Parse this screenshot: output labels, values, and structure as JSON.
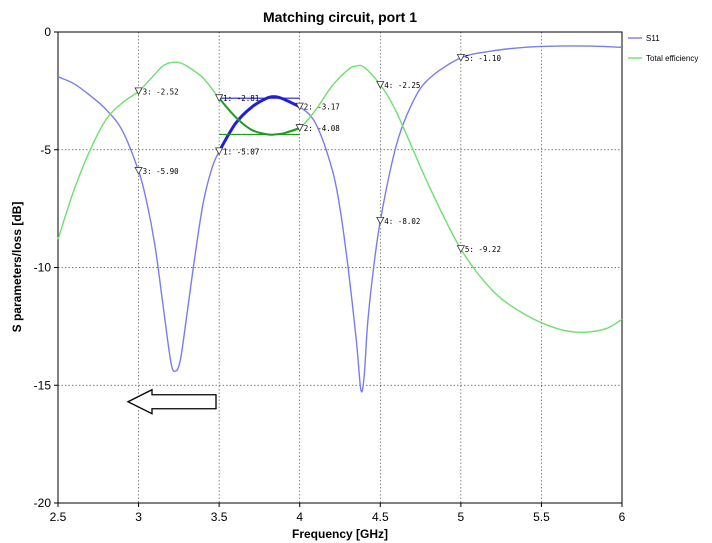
{
  "chart_data": {
    "type": "line",
    "title": "Matching circuit, port 1",
    "xlabel": "Frequency [GHz]",
    "ylabel": "S parameters/loss [dB]",
    "xlim": [
      2.5,
      6
    ],
    "ylim": [
      -20,
      0
    ],
    "xticks": [
      "2.5",
      "3",
      "3.5",
      "4",
      "4.5",
      "5",
      "5.5",
      "6"
    ],
    "yticks": [
      "0",
      "-5",
      "-10",
      "-15",
      "-20"
    ],
    "grid": true,
    "legend_position": "right",
    "series": [
      {
        "name": "S11",
        "color": "#7b7bf0",
        "x": [
          2.5,
          2.6,
          2.7,
          2.8,
          2.9,
          3.0,
          3.05,
          3.1,
          3.15,
          3.2,
          3.23,
          3.26,
          3.3,
          3.35,
          3.4,
          3.45,
          3.5,
          3.6,
          3.7,
          3.8,
          3.85,
          3.9,
          4.0,
          4.1,
          4.2,
          4.25,
          4.3,
          4.35,
          4.38,
          4.4,
          4.42,
          4.45,
          4.5,
          4.6,
          4.7,
          4.8,
          5.0,
          5.2,
          5.4,
          5.6,
          5.8,
          6.0
        ],
        "values": [
          -1.9,
          -2.2,
          -2.7,
          -3.3,
          -4.2,
          -5.9,
          -7.2,
          -9.0,
          -11.5,
          -14.0,
          -14.4,
          -13.9,
          -12.0,
          -9.5,
          -7.3,
          -5.9,
          -5.07,
          -3.9,
          -3.2,
          -2.8,
          -2.75,
          -2.85,
          -3.17,
          -3.9,
          -5.8,
          -7.5,
          -10.0,
          -13.0,
          -15.2,
          -14.6,
          -12.5,
          -10.5,
          -8.02,
          -4.8,
          -3.0,
          -2.0,
          -1.1,
          -0.8,
          -0.65,
          -0.6,
          -0.6,
          -0.65
        ]
      },
      {
        "name": "Total efficiency",
        "color": "#6ee06e",
        "x": [
          2.5,
          2.6,
          2.7,
          2.8,
          2.9,
          3.0,
          3.1,
          3.15,
          3.2,
          3.25,
          3.3,
          3.4,
          3.5,
          3.6,
          3.7,
          3.8,
          3.85,
          3.9,
          4.0,
          4.1,
          4.2,
          4.3,
          4.35,
          4.4,
          4.5,
          4.6,
          4.8,
          5.0,
          5.2,
          5.4,
          5.6,
          5.75,
          5.9,
          6.0
        ],
        "values": [
          -8.8,
          -6.7,
          -5.0,
          -3.7,
          -3.0,
          -2.52,
          -1.8,
          -1.45,
          -1.3,
          -1.3,
          -1.45,
          -1.95,
          -2.81,
          -3.6,
          -4.15,
          -4.35,
          -4.35,
          -4.3,
          -4.08,
          -3.3,
          -2.3,
          -1.6,
          -1.45,
          -1.5,
          -2.25,
          -3.4,
          -6.5,
          -9.22,
          -11.0,
          -12.0,
          -12.6,
          -12.75,
          -12.6,
          -12.2
        ]
      }
    ],
    "highlight_range": [
      3.5,
      4.0
    ],
    "markers": [
      {
        "series": "S11",
        "x": 3.0,
        "y": -5.9,
        "label": "3: -5.90"
      },
      {
        "series": "S11",
        "x": 3.5,
        "y": -5.07,
        "label": "1: -5.07"
      },
      {
        "series": "S11",
        "x": 4.0,
        "y": -3.17,
        "label": "2: -3.17"
      },
      {
        "series": "S11",
        "x": 4.5,
        "y": -8.02,
        "label": "4: -8.02"
      },
      {
        "series": "S11",
        "x": 5.0,
        "y": -1.1,
        "label": "5: -1.10"
      },
      {
        "series": "Total efficiency",
        "x": 3.0,
        "y": -2.52,
        "label": "3: -2.52"
      },
      {
        "series": "Total efficiency",
        "x": 3.5,
        "y": -2.81,
        "label": "1: -2.81"
      },
      {
        "series": "Total efficiency",
        "x": 4.0,
        "y": -4.08,
        "label": "2: -4.08"
      },
      {
        "series": "Total efficiency",
        "x": 4.5,
        "y": -2.25,
        "label": "4: -2.25"
      },
      {
        "series": "Total efficiency",
        "x": 5.0,
        "y": -9.22,
        "label": "5: -9.22"
      }
    ],
    "reference_lines": [
      {
        "series": "S11",
        "y": -2.81
      },
      {
        "series": "Total efficiency",
        "y": -4.35
      }
    ],
    "annotation_arrow": {
      "direction": "left",
      "y": -15.7
    }
  }
}
